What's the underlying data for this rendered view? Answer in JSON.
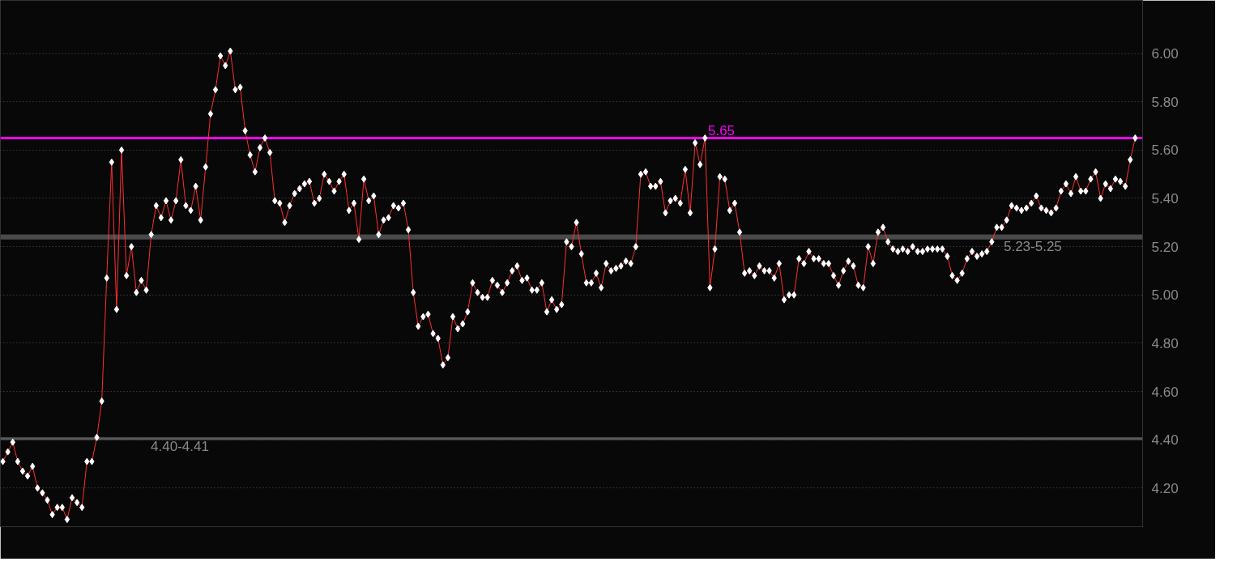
{
  "chart_data": {
    "type": "line",
    "categories": [
      null,
      null,
      null,
      null,
      null,
      null,
      null,
      null,
      null,
      null,
      null,
      null,
      null,
      null,
      null,
      null,
      null,
      null,
      null,
      null,
      null,
      null,
      null,
      null,
      null,
      null,
      null,
      null,
      null,
      null,
      null,
      null,
      null,
      null,
      null,
      null,
      null,
      null,
      null,
      null,
      null,
      null,
      null,
      null,
      null,
      null,
      null,
      null,
      null,
      null,
      null,
      null,
      null,
      null,
      null,
      null,
      null,
      null,
      null,
      null,
      null,
      null,
      null,
      null,
      null,
      null,
      null,
      null,
      null,
      null,
      null,
      null,
      null,
      null,
      null,
      null,
      null,
      null,
      null,
      null,
      null,
      null,
      null,
      null,
      null,
      null,
      null,
      null,
      null,
      null,
      null,
      null,
      null,
      null,
      null,
      null,
      null,
      null,
      null,
      null,
      null,
      null,
      null,
      null,
      null,
      null,
      null,
      null,
      null,
      null,
      null,
      null,
      null,
      null,
      null,
      null,
      null,
      null,
      null,
      null,
      null,
      null,
      null,
      null,
      null,
      null,
      null,
      null,
      null,
      null,
      null,
      null,
      null,
      null,
      null,
      null,
      null,
      null,
      null,
      null,
      null,
      null,
      null,
      null,
      null,
      null,
      null,
      null,
      null,
      null,
      null,
      null,
      null,
      null,
      null,
      null,
      null,
      null,
      null,
      null,
      null,
      null,
      null,
      null,
      null,
      null,
      null,
      null,
      null,
      null,
      null,
      null,
      null,
      null,
      null,
      null,
      null,
      null,
      null,
      null,
      null,
      null,
      null,
      null,
      null,
      null,
      null,
      null,
      null,
      null,
      null,
      null,
      null,
      null,
      null,
      null,
      null,
      null,
      null,
      null,
      null,
      null,
      null,
      null,
      null,
      null,
      null,
      null,
      null,
      null,
      null,
      null,
      null,
      null,
      null,
      null,
      null,
      null,
      null,
      null,
      null,
      null,
      null,
      null,
      null,
      null,
      null,
      null,
      null,
      null
    ],
    "series": [
      {
        "color": "#ff3030",
        "values": [
          4.31,
          4.35,
          4.39,
          4.31,
          4.27,
          4.25,
          4.29,
          4.2,
          4.18,
          4.15,
          4.09,
          4.12,
          4.12,
          4.07,
          4.16,
          4.14,
          4.12,
          4.31,
          4.31,
          4.41,
          4.56,
          5.07,
          5.55,
          4.94,
          5.6,
          5.08,
          5.2,
          5.01,
          5.06,
          5.02,
          5.25,
          5.37,
          5.32,
          5.39,
          5.31,
          5.39,
          5.56,
          5.37,
          5.35,
          5.45,
          5.31,
          5.53,
          5.75,
          5.85,
          5.99,
          5.95,
          6.01,
          5.85,
          5.86,
          5.68,
          5.58,
          5.51,
          5.61,
          5.65,
          5.59,
          5.39,
          5.38,
          5.3,
          5.37,
          5.42,
          5.44,
          5.46,
          5.47,
          5.38,
          5.4,
          5.5,
          5.47,
          5.43,
          5.47,
          5.5,
          5.35,
          5.38,
          5.23,
          5.48,
          5.39,
          5.41,
          5.25,
          5.31,
          5.32,
          5.37,
          5.36,
          5.38,
          5.27,
          5.01,
          4.87,
          4.91,
          4.92,
          4.84,
          4.82,
          4.71,
          4.74,
          4.91,
          4.86,
          4.88,
          4.93,
          5.05,
          5.01,
          4.99,
          4.99,
          5.06,
          5.04,
          5.01,
          5.05,
          5.1,
          5.12,
          5.06,
          5.07,
          5.02,
          5.02,
          5.05,
          4.93,
          4.98,
          4.94,
          4.96,
          5.22,
          5.2,
          5.3,
          5.17,
          5.05,
          5.05,
          5.09,
          5.03,
          5.13,
          5.1,
          5.11,
          5.12,
          5.14,
          5.13,
          5.2,
          5.5,
          5.51,
          5.45,
          5.45,
          5.47,
          5.34,
          5.39,
          5.4,
          5.38,
          5.52,
          5.34,
          5.63,
          5.54,
          5.65,
          5.03,
          5.19,
          5.49,
          5.48,
          5.35,
          5.38,
          5.26,
          5.09,
          5.1,
          5.08,
          5.12,
          5.1,
          5.1,
          5.07,
          5.13,
          4.98,
          5.0,
          5.0,
          5.15,
          5.13,
          5.18,
          5.15,
          5.15,
          5.13,
          5.13,
          5.08,
          5.04,
          5.1,
          5.14,
          5.12,
          5.04,
          5.03,
          5.2,
          5.13,
          5.26,
          5.28,
          5.22,
          5.19,
          5.18,
          5.19,
          5.18,
          5.2,
          5.18,
          5.18,
          5.19,
          5.19,
          5.19,
          5.19,
          5.16,
          5.08,
          5.06,
          5.09,
          5.15,
          5.18,
          5.16,
          5.17,
          5.18,
          5.22,
          5.28,
          5.28,
          5.31,
          5.37,
          5.36,
          5.35,
          5.36,
          5.38,
          5.41,
          5.36,
          5.35,
          5.34,
          5.36,
          5.43,
          5.46,
          5.42,
          5.49,
          5.43,
          5.43,
          5.48,
          5.51,
          5.4,
          5.46,
          5.44,
          5.48,
          5.47,
          5.45,
          5.56,
          5.65
        ]
      }
    ],
    "ylim": [
      4.04,
      6.22
    ],
    "yticks": [
      {
        "value": 4.2,
        "label": "4.20"
      },
      {
        "value": 4.4,
        "label": "4.40"
      },
      {
        "value": 4.6,
        "label": "4.60"
      },
      {
        "value": 4.8,
        "label": "4.80"
      },
      {
        "value": 5.0,
        "label": "5.00"
      },
      {
        "value": 5.2,
        "label": "5.20"
      },
      {
        "value": 5.4,
        "label": "5.40"
      },
      {
        "value": 5.6,
        "label": "5.60"
      },
      {
        "value": 5.8,
        "label": "5.80"
      },
      {
        "value": 6.0,
        "label": "6.00"
      }
    ],
    "tick_labels": "y",
    "grid": "y",
    "marker": "diamond",
    "line_style": "solid",
    "ref_lines": [
      {
        "axis": "y",
        "value": 5.65,
        "label": "5.65",
        "color": "#ff00ff"
      }
    ],
    "bands": [
      {
        "axis": "y",
        "from": 5.23,
        "to": 5.25,
        "label": "5.23-5.25",
        "color": "#4a4a4a"
      },
      {
        "axis": "y",
        "from": 4.4,
        "to": 4.41,
        "label": "4.40-4.41",
        "color": "#5a5a5a"
      }
    ]
  }
}
